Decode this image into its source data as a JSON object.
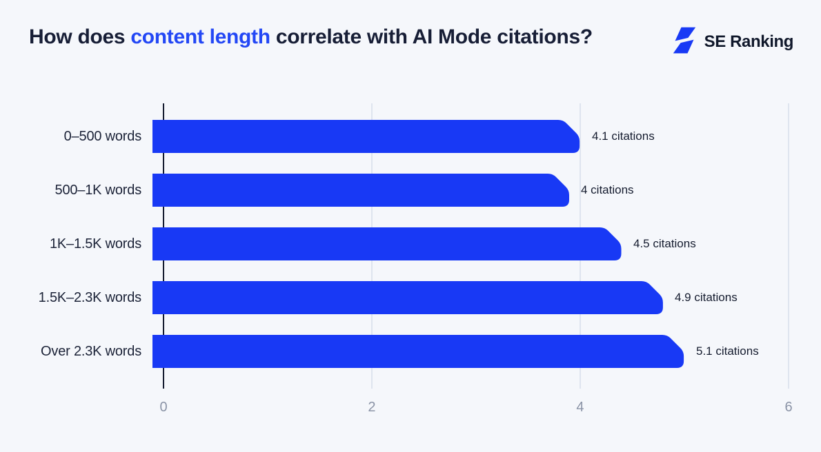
{
  "header": {
    "title_part1": "How does ",
    "title_highlight": "content length",
    "title_part2": " correlate with AI Mode citations?",
    "highlight_color": "#2347F5",
    "logo_text": "SE Ranking",
    "logo_color": "#1839F5"
  },
  "chart_data": {
    "type": "bar",
    "orientation": "horizontal",
    "title": "How does content length correlate with AI Mode citations?",
    "categories": [
      "0–500 words",
      "500–1K words",
      "1K–1.5K words",
      "1.5K–2.3K words",
      "Over 2.3K words"
    ],
    "values": [
      4.1,
      4,
      4.5,
      4.9,
      5.1
    ],
    "value_labels": [
      "4.1 citations",
      "4 citations",
      "4.5 citations",
      "4.9 citations",
      "5.1 citations"
    ],
    "value_suffix": "citations",
    "x_ticks": [
      0,
      2,
      4,
      6
    ],
    "xlim": [
      0,
      6
    ],
    "bar_color": "#1839F5",
    "grid": true,
    "gridline_color": "#DEE4EF",
    "axis_color": "#141B2F"
  }
}
